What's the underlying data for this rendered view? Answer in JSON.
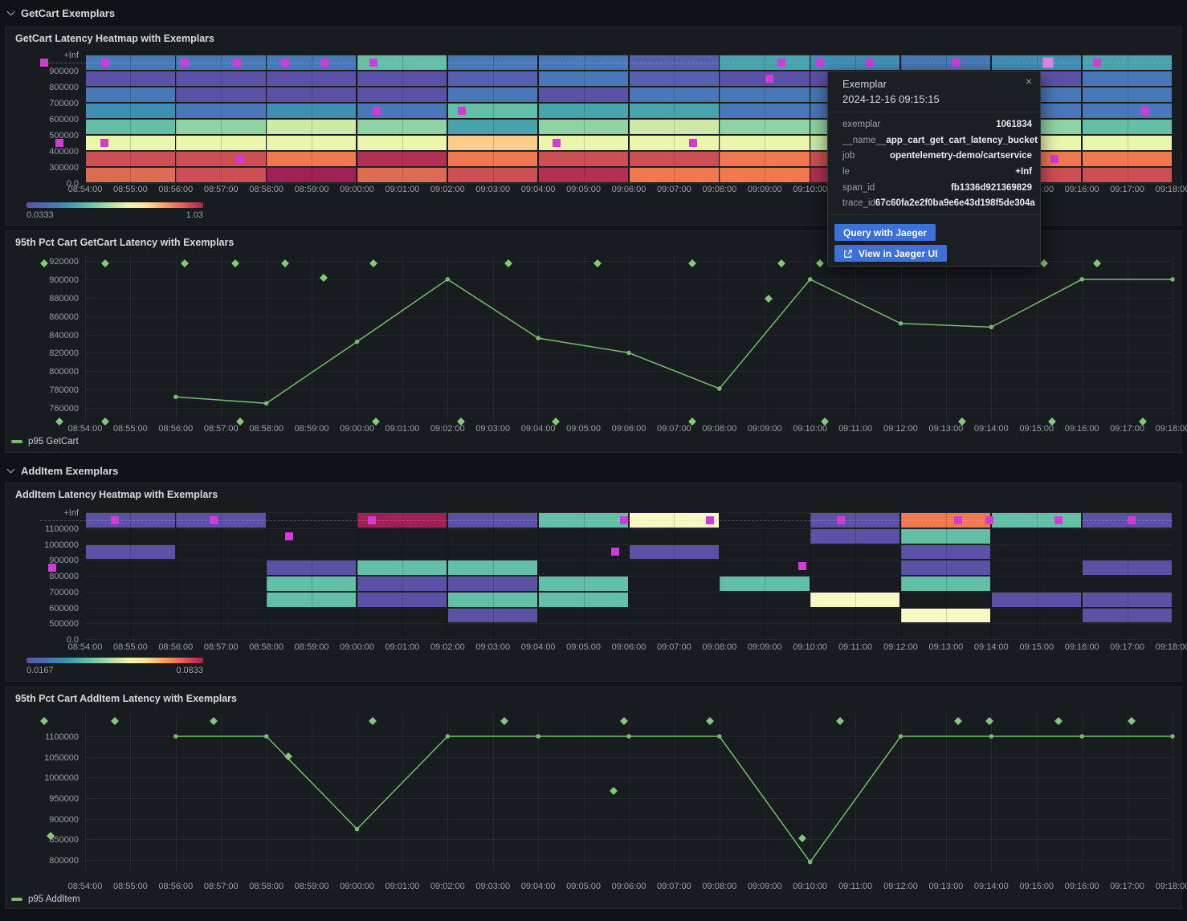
{
  "palette": {
    "P": "#5b51a5",
    "PB": "#5560ae",
    "B": "#4a77b7",
    "TB": "#3f8fb5",
    "T": "#47a4ad",
    "TG": "#63bfa5",
    "G": "#90d2a4",
    "YG": "#cdeba6",
    "PY": "#eaf6ad",
    "CR": "#f7f8c2",
    "PE": "#fdce8b",
    "O": "#f0794f",
    "SA": "#de6b53",
    "R": "#cc4f55",
    "DR": "#b23052",
    "CM": "#a02153"
  },
  "colors": {
    "line": "#73bf69",
    "diamond": "#82cb78",
    "exemplar": "#d33ad6",
    "exemplar_hover": "#de85de",
    "button": "#3d71d9"
  },
  "sections": [
    {
      "title": "GetCart Exemplars"
    },
    {
      "title": "AddItem Exemplars"
    }
  ],
  "x_ticks": [
    "08:54:00",
    "08:55:00",
    "08:56:00",
    "08:57:00",
    "08:58:00",
    "08:59:00",
    "09:00:00",
    "09:01:00",
    "09:02:00",
    "09:03:00",
    "09:04:00",
    "09:05:00",
    "09:06:00",
    "09:07:00",
    "09:08:00",
    "09:09:00",
    "09:10:00",
    "09:11:00",
    "09:12:00",
    "09:13:00",
    "09:14:00",
    "09:15:00",
    "09:16:00",
    "09:17:00",
    "09:18:00"
  ],
  "charts": {
    "getcart_heatmap": {
      "title": "GetCart Latency Heatmap with Exemplars",
      "type": "heatmap",
      "y_labels": [
        "+Inf",
        "900000",
        "800000",
        "700000",
        "600000",
        "500000",
        "400000",
        "300000",
        "0.0"
      ],
      "bucket_edges": [
        0,
        300000,
        400000,
        500000,
        600000,
        700000,
        800000,
        900000
      ],
      "column_minutes": 2,
      "grid": [
        [
          "B",
          "P",
          "B",
          "TB",
          "TG",
          "PY",
          "R",
          "SA"
        ],
        [
          "B",
          "P",
          "P",
          "B",
          "G",
          "PY",
          "R",
          "R"
        ],
        [
          "B",
          "P",
          "P",
          "TB",
          "YG",
          "PY",
          "O",
          "CM"
        ],
        [
          "TG",
          "P",
          "P",
          "B",
          "G",
          "PY",
          "DR",
          "SA"
        ],
        [
          "B",
          "PB",
          "B",
          "TG",
          "T",
          "PE",
          "O",
          "R"
        ],
        [
          "B",
          "B",
          "P",
          "T",
          "G",
          "PY",
          "R",
          "DR"
        ],
        [
          "PB",
          "PB",
          "B",
          "T",
          "YG",
          "PY",
          "R",
          "O"
        ],
        [
          "T",
          "P",
          "B",
          "B",
          "G",
          "PY",
          "O",
          "O"
        ],
        [
          "TB",
          "P",
          "B",
          "B",
          "G",
          "YG",
          "R",
          "DR"
        ],
        [
          "B",
          "PB",
          "B",
          "TB",
          "G",
          "PY",
          "O",
          "R"
        ],
        [
          "TB",
          "P",
          "B",
          "B",
          "G",
          "PY",
          "O",
          "R"
        ],
        [
          "T",
          "B",
          "B",
          "B",
          "TG",
          "PY",
          "O",
          "R"
        ]
      ],
      "exemplars": [
        {
          "m": -0.9,
          "v": "inf"
        },
        {
          "m": -0.57,
          "v": 450000
        },
        {
          "m": 0.44,
          "v": "inf"
        },
        {
          "m": 0.43,
          "v": 450000
        },
        {
          "m": 2.2,
          "v": "inf"
        },
        {
          "m": 3.35,
          "v": "inf"
        },
        {
          "m": 3.42,
          "v": 350000
        },
        {
          "m": 4.42,
          "v": "inf"
        },
        {
          "m": 5.28,
          "v": "inf"
        },
        {
          "m": 6.37,
          "v": "inf"
        },
        {
          "m": 6.44,
          "v": 650000
        },
        {
          "m": 8.32,
          "v": 650000
        },
        {
          "m": 10.41,
          "v": 450000
        },
        {
          "m": 13.42,
          "v": 450000
        },
        {
          "m": 15.11,
          "v": 850000
        },
        {
          "m": 15.37,
          "v": "inf"
        },
        {
          "m": 16.21,
          "v": "inf"
        },
        {
          "m": 17.32,
          "v": "inf"
        },
        {
          "m": 19.22,
          "v": "inf"
        },
        {
          "m": 21.25,
          "v": "inf",
          "hover": true
        },
        {
          "m": 22.34,
          "v": "inf"
        },
        {
          "m": 21.4,
          "v": 350000
        },
        {
          "m": 23.4,
          "v": 650000
        }
      ],
      "color_scale": {
        "min": "0.0333",
        "max": "1.03"
      }
    },
    "getcart_line": {
      "title": "95th Pct Cart GetCart Latency with Exemplars",
      "type": "line",
      "y_labels": [
        "920000",
        "900000",
        "880000",
        "860000",
        "840000",
        "820000",
        "800000",
        "780000",
        "760000"
      ],
      "series": {
        "name": "p95 GetCart",
        "start": "08:56:00",
        "interval_min": 2,
        "values": [
          772000,
          765000,
          832000,
          900000,
          836000,
          820000,
          781000,
          900000,
          852000,
          848000,
          900000,
          900000
        ]
      },
      "exemplars": [
        {
          "m": -0.9,
          "v": "top"
        },
        {
          "m": 0.44,
          "v": "top"
        },
        {
          "m": 2.2,
          "v": "top"
        },
        {
          "m": 3.32,
          "v": "top"
        },
        {
          "m": 4.42,
          "v": "top"
        },
        {
          "m": 6.37,
          "v": "top"
        },
        {
          "m": 9.34,
          "v": "top"
        },
        {
          "m": 11.31,
          "v": "top"
        },
        {
          "m": 13.4,
          "v": "top"
        },
        {
          "m": 15.37,
          "v": "top"
        },
        {
          "m": 16.21,
          "v": "top"
        },
        {
          "m": 21.17,
          "v": "top"
        },
        {
          "m": 22.34,
          "v": "top"
        },
        {
          "m": 5.27,
          "v": 902000
        },
        {
          "m": 15.09,
          "v": 879000
        },
        {
          "m": -0.57,
          "v": "bottom"
        },
        {
          "m": 0.44,
          "v": "bottom"
        },
        {
          "m": 3.42,
          "v": "bottom"
        },
        {
          "m": 6.42,
          "v": "bottom"
        },
        {
          "m": 8.3,
          "v": "bottom"
        },
        {
          "m": 10.39,
          "v": "bottom"
        },
        {
          "m": 13.4,
          "v": "bottom"
        },
        {
          "m": 16.33,
          "v": "bottom"
        },
        {
          "m": 19.36,
          "v": "bottom"
        },
        {
          "m": 21.35,
          "v": "bottom"
        },
        {
          "m": 23.35,
          "v": "bottom"
        }
      ]
    },
    "additem_heatmap": {
      "title": "AddItem Latency Heatmap with Exemplars",
      "type": "heatmap",
      "y_labels": [
        "+Inf",
        "1100000",
        "1000000",
        "900000",
        "800000",
        "700000",
        "600000",
        "500000",
        "0.0"
      ],
      "bucket_edges": [
        0,
        500000,
        600000,
        700000,
        800000,
        900000,
        1000000,
        1100000
      ],
      "column_minutes": 2,
      "grid": [
        [
          "P",
          null,
          "P",
          null,
          null,
          null,
          null,
          null
        ],
        [
          "P",
          null,
          null,
          null,
          null,
          null,
          null,
          null
        ],
        [
          null,
          null,
          null,
          "P",
          "TG",
          "TG",
          null,
          null
        ],
        [
          "CM",
          null,
          null,
          "TG",
          "P",
          "P",
          null,
          null
        ],
        [
          "P",
          null,
          null,
          "TG",
          "P",
          "TG",
          "P",
          null
        ],
        [
          "TG",
          null,
          null,
          null,
          "TG",
          "TG",
          null,
          null
        ],
        [
          "CR",
          null,
          "P",
          null,
          null,
          null,
          null,
          null
        ],
        [
          null,
          null,
          null,
          null,
          "TG",
          null,
          null,
          null
        ],
        [
          "P",
          "P",
          null,
          null,
          null,
          "CR",
          null,
          null
        ],
        [
          "O",
          "TG",
          "P",
          "P",
          "TG",
          null,
          "CR",
          null
        ],
        [
          "TG",
          null,
          null,
          null,
          null,
          "P",
          null,
          null
        ],
        [
          "P",
          null,
          null,
          "P",
          null,
          "P",
          "P",
          null
        ]
      ],
      "exemplars": [
        {
          "m": -0.73,
          "v": 850000
        },
        {
          "m": 0.66,
          "v": "inf"
        },
        {
          "m": 2.84,
          "v": "inf"
        },
        {
          "m": 4.5,
          "v": 1050000
        },
        {
          "m": 6.33,
          "v": "inf"
        },
        {
          "m": 11.69,
          "v": 950000
        },
        {
          "m": 11.9,
          "v": "inf"
        },
        {
          "m": 13.79,
          "v": "inf"
        },
        {
          "m": 15.82,
          "v": 860000
        },
        {
          "m": 16.68,
          "v": "inf"
        },
        {
          "m": 19.27,
          "v": "inf"
        },
        {
          "m": 19.95,
          "v": "inf"
        },
        {
          "m": 21.49,
          "v": "inf"
        },
        {
          "m": 23.09,
          "v": "inf"
        }
      ],
      "color_scale": {
        "min": "0.0167",
        "max": "0.0833"
      }
    },
    "additem_line": {
      "title": "95th Pct Cart AddItem Latency with Exemplars",
      "type": "line",
      "y_labels": [
        "1100000",
        "1050000",
        "1000000",
        "950000",
        "900000",
        "850000",
        "800000"
      ],
      "series": {
        "name": "p95 AddItem",
        "start": "08:56:00",
        "interval_min": 2,
        "values": [
          1100000,
          1100000,
          875000,
          1100000,
          1100000,
          1100000,
          1100000,
          795000,
          1100000,
          1100000,
          1100000,
          1100000
        ]
      },
      "exemplars": [
        {
          "m": -0.9,
          "v": "top"
        },
        {
          "m": 0.66,
          "v": "top"
        },
        {
          "m": 2.84,
          "v": "top"
        },
        {
          "m": 6.35,
          "v": "top"
        },
        {
          "m": 9.26,
          "v": "top"
        },
        {
          "m": 11.9,
          "v": "top"
        },
        {
          "m": 13.79,
          "v": "top"
        },
        {
          "m": 16.67,
          "v": "top"
        },
        {
          "m": 19.27,
          "v": "top"
        },
        {
          "m": 19.95,
          "v": "top"
        },
        {
          "m": 21.49,
          "v": "top"
        },
        {
          "m": 23.09,
          "v": "top"
        },
        {
          "m": -0.76,
          "v": 858000
        },
        {
          "m": 4.49,
          "v": 1052000
        },
        {
          "m": 11.67,
          "v": 967000
        },
        {
          "m": 15.82,
          "v": 853000
        }
      ]
    }
  },
  "tooltip": {
    "title": "Exemplar",
    "close_icon": "×",
    "timestamp": "2024-12-16 09:15:15",
    "rows": [
      {
        "k": "exemplar",
        "v": "1061834"
      },
      {
        "k": "__name__",
        "v": "app_cart_get_cart_latency_bucket"
      },
      {
        "k": "job",
        "v": "opentelemetry-demo/cartservice"
      },
      {
        "k": "le",
        "v": "+Inf"
      },
      {
        "k": "span_id",
        "v": "fb1336d921369829"
      },
      {
        "k": "trace_id",
        "v": "67c60fa2e2f0ba9e6e43d198f5de304a"
      }
    ],
    "buttons": [
      {
        "label": "Query with Jaeger"
      },
      {
        "label": "View in Jaeger UI",
        "icon": "external-link"
      }
    ]
  }
}
